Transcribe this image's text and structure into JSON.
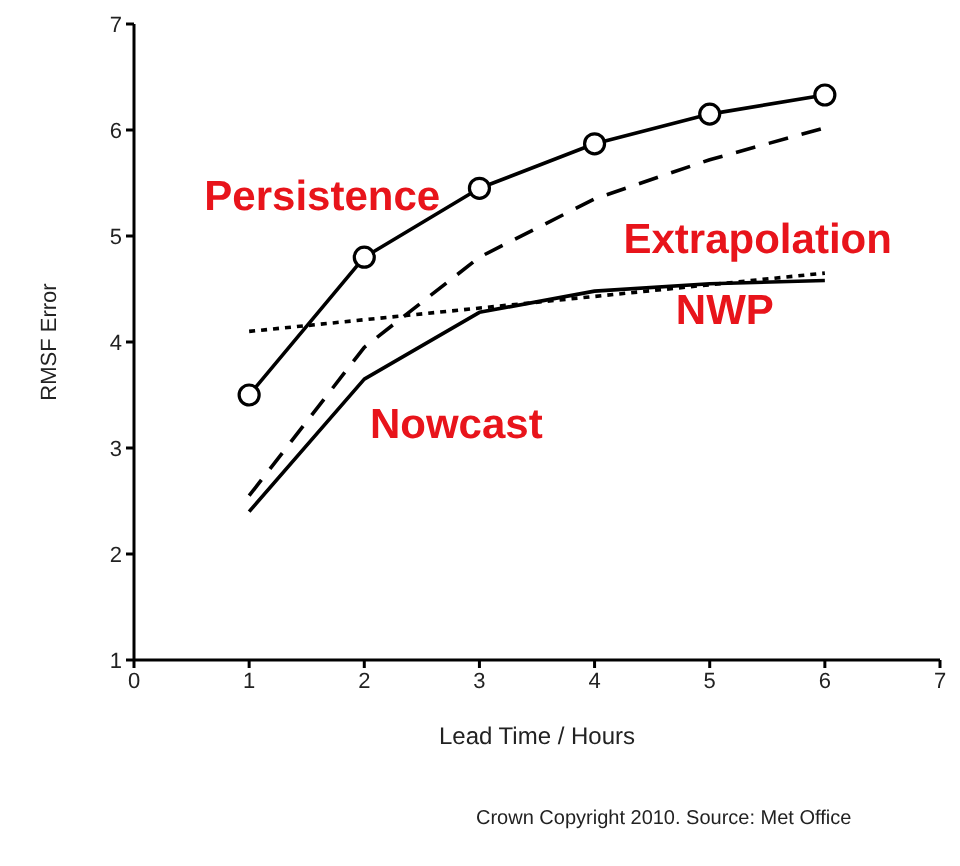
{
  "chart_data": {
    "type": "line",
    "xlabel": "Lead Time / Hours",
    "ylabel": "RMSF Error",
    "xlim": [
      0,
      7
    ],
    "xticks": [
      0,
      1,
      2,
      3,
      4,
      5,
      6,
      7
    ],
    "ylim": [
      1,
      7
    ],
    "yticks": [
      1,
      2,
      3,
      4,
      5,
      6,
      7
    ],
    "grid": false,
    "legend": false,
    "series": [
      {
        "name": "Persistence",
        "color": "#000000",
        "marker": "circle",
        "line_style": "solid",
        "x": [
          1,
          2,
          3,
          4,
          5,
          6
        ],
        "values": [
          3.5,
          4.8,
          5.45,
          5.87,
          6.15,
          6.33
        ]
      },
      {
        "name": "Extrapolation",
        "color": "#000000",
        "marker": "none",
        "line_style": "dashed",
        "x": [
          1,
          2,
          3,
          4,
          5,
          6
        ],
        "values": [
          2.55,
          3.95,
          4.8,
          5.35,
          5.72,
          6.02
        ]
      },
      {
        "name": "NWP",
        "color": "#000000",
        "marker": "none",
        "line_style": "dotted",
        "x": [
          1,
          6
        ],
        "values": [
          4.1,
          4.65
        ]
      },
      {
        "name": "Nowcast",
        "color": "#000000",
        "marker": "none",
        "line_style": "solid",
        "x": [
          1,
          2,
          3,
          4,
          5,
          6
        ],
        "values": [
          2.4,
          3.65,
          4.28,
          4.48,
          4.55,
          4.58
        ]
      }
    ],
    "annotations": [
      "Crown Copyright 2010. Source: Met Office"
    ]
  }
}
